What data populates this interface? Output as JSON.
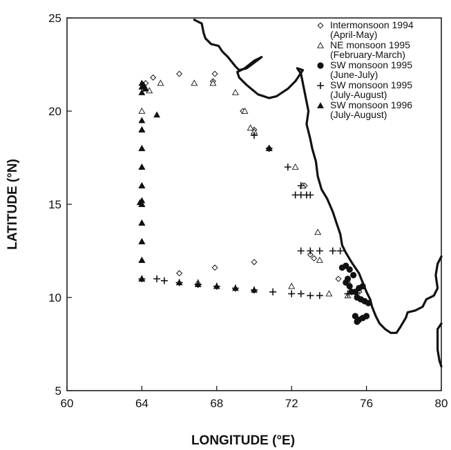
{
  "chart_data": {
    "type": "scatter",
    "title": "",
    "xlabel": "LONGITUDE (°E)",
    "ylabel": "LATITUDE (°N)",
    "xlim": [
      60,
      80
    ],
    "ylim": [
      5,
      25
    ],
    "xticks": [
      60,
      64,
      68,
      72,
      76,
      80
    ],
    "yticks": [
      5,
      10,
      15,
      20,
      25
    ],
    "grid": false,
    "legend_position": "top-right",
    "series": [
      {
        "name": "Intermonsoon 1994",
        "name_line2": "(April-May)",
        "marker": "diamond-open",
        "points": [
          [
            64.2,
            21.5
          ],
          [
            64.6,
            21.8
          ],
          [
            66.0,
            22.0
          ],
          [
            67.9,
            22.0
          ],
          [
            67.8,
            21.6
          ],
          [
            69.4,
            20.0
          ],
          [
            70.0,
            19.0
          ],
          [
            70.8,
            18.0
          ],
          [
            72.7,
            16.0
          ],
          [
            73.0,
            12.3
          ],
          [
            73.2,
            12.1
          ],
          [
            74.5,
            11.0
          ],
          [
            75.0,
            10.8
          ],
          [
            70.0,
            11.9
          ],
          [
            67.9,
            11.6
          ],
          [
            66.0,
            11.3
          ]
        ]
      },
      {
        "name": "NE monsoon 1995",
        "name_line2": "(February-March)",
        "marker": "triangle-open",
        "points": [
          [
            64.2,
            21.2
          ],
          [
            64.4,
            21.1
          ],
          [
            65.0,
            21.5
          ],
          [
            66.8,
            21.5
          ],
          [
            67.8,
            21.5
          ],
          [
            69.0,
            21.0
          ],
          [
            69.5,
            20.0
          ],
          [
            69.8,
            19.1
          ],
          [
            70.0,
            18.9
          ],
          [
            70.8,
            18.0
          ],
          [
            72.2,
            17.0
          ],
          [
            72.6,
            16.0
          ],
          [
            64.0,
            20.0
          ],
          [
            64.0,
            19.0
          ],
          [
            64.0,
            18.0
          ],
          [
            64.0,
            17.0
          ],
          [
            64.0,
            16.0
          ],
          [
            64.0,
            15.0
          ],
          [
            64.0,
            14.0
          ],
          [
            64.0,
            13.0
          ],
          [
            64.0,
            12.0
          ],
          [
            64.0,
            11.0
          ],
          [
            67.0,
            10.8
          ],
          [
            72.0,
            10.6
          ],
          [
            73.4,
            13.5
          ],
          [
            73.5,
            12.0
          ],
          [
            74.0,
            10.2
          ],
          [
            75.0,
            10.1
          ],
          [
            75.6,
            10.4
          ]
        ]
      },
      {
        "name": "SW monsoon 1995",
        "name_line2": "(June-July)",
        "marker": "circle-filled",
        "points": [
          [
            74.7,
            11.6
          ],
          [
            74.9,
            11.7
          ],
          [
            75.1,
            11.5
          ],
          [
            75.3,
            11.2
          ],
          [
            75.0,
            11.0
          ],
          [
            74.9,
            10.8
          ],
          [
            75.1,
            10.6
          ],
          [
            75.2,
            10.3
          ],
          [
            75.4,
            10.3
          ],
          [
            75.6,
            10.5
          ],
          [
            75.8,
            10.6
          ],
          [
            75.5,
            10.0
          ],
          [
            75.7,
            9.9
          ],
          [
            75.9,
            9.8
          ],
          [
            76.1,
            9.7
          ],
          [
            75.4,
            9.0
          ],
          [
            75.6,
            8.8
          ],
          [
            75.5,
            8.7
          ],
          [
            75.8,
            8.9
          ],
          [
            76.0,
            9.0
          ]
        ]
      },
      {
        "name": "SW monsoon 1995",
        "name_line2": "(July-August)",
        "marker": "plus",
        "points": [
          [
            64.0,
            11.0
          ],
          [
            64.8,
            11.0
          ],
          [
            65.2,
            10.9
          ],
          [
            66.0,
            10.8
          ],
          [
            67.0,
            10.7
          ],
          [
            68.0,
            10.6
          ],
          [
            69.0,
            10.5
          ],
          [
            70.0,
            10.4
          ],
          [
            71.0,
            10.3
          ],
          [
            72.0,
            10.2
          ],
          [
            72.5,
            10.2
          ],
          [
            73.0,
            10.1
          ],
          [
            73.5,
            10.1
          ],
          [
            75.0,
            10.2
          ],
          [
            75.5,
            10.2
          ],
          [
            70.0,
            18.7
          ],
          [
            70.8,
            18.0
          ],
          [
            71.8,
            17.0
          ],
          [
            72.5,
            16.0
          ],
          [
            72.2,
            15.5
          ],
          [
            72.5,
            15.5
          ],
          [
            72.8,
            15.5
          ],
          [
            73.0,
            15.5
          ],
          [
            72.5,
            12.5
          ],
          [
            73.0,
            12.5
          ],
          [
            73.5,
            12.5
          ],
          [
            74.2,
            12.5
          ],
          [
            74.6,
            12.5
          ]
        ]
      },
      {
        "name": "SW monsoon 1996",
        "name_line2": "(July-August)",
        "marker": "triangle-filled",
        "points": [
          [
            64.0,
            21.5
          ],
          [
            64.1,
            21.4
          ],
          [
            64.0,
            21.3
          ],
          [
            64.2,
            21.2
          ],
          [
            64.0,
            21.0
          ],
          [
            64.0,
            19.5
          ],
          [
            64.0,
            19.0
          ],
          [
            64.0,
            18.0
          ],
          [
            64.0,
            17.0
          ],
          [
            64.0,
            16.0
          ],
          [
            64.0,
            15.2
          ],
          [
            63.9,
            15.1
          ],
          [
            64.0,
            15.0
          ],
          [
            64.0,
            14.0
          ],
          [
            64.0,
            13.0
          ],
          [
            64.0,
            12.0
          ],
          [
            64.0,
            11.0
          ],
          [
            66.0,
            10.8
          ],
          [
            67.0,
            10.7
          ],
          [
            68.0,
            10.6
          ],
          [
            69.0,
            10.5
          ],
          [
            70.0,
            10.4
          ],
          [
            70.8,
            18.0
          ],
          [
            64.8,
            19.8
          ]
        ]
      }
    ],
    "coastline": [
      [
        [
          66.8,
          24.9
        ],
        [
          67.2,
          24.7
        ],
        [
          67.3,
          24.2
        ],
        [
          67.4,
          23.9
        ],
        [
          67.7,
          23.6
        ],
        [
          68.1,
          23.5
        ],
        [
          68.3,
          23.2
        ],
        [
          68.6,
          22.9
        ],
        [
          69.0,
          22.4
        ],
        [
          69.2,
          22.2
        ],
        [
          69.6,
          22.3
        ],
        [
          70.0,
          22.6
        ],
        [
          70.4,
          22.9
        ],
        [
          70.0,
          22.7
        ],
        [
          69.5,
          22.3
        ],
        [
          69.1,
          22.1
        ],
        [
          69.2,
          21.8
        ],
        [
          69.6,
          21.4
        ],
        [
          70.2,
          20.9
        ],
        [
          70.8,
          20.7
        ],
        [
          71.2,
          20.8
        ],
        [
          71.8,
          21.2
        ],
        [
          72.2,
          21.6
        ],
        [
          72.6,
          22.2
        ],
        [
          72.3,
          22.3
        ],
        [
          72.5,
          22.0
        ],
        [
          72.6,
          21.5
        ],
        [
          72.7,
          21.0
        ],
        [
          72.8,
          20.5
        ],
        [
          72.9,
          20.0
        ],
        [
          72.8,
          19.3
        ],
        [
          73.0,
          18.5
        ],
        [
          73.1,
          18.0
        ],
        [
          73.3,
          17.3
        ],
        [
          73.4,
          16.5
        ],
        [
          73.6,
          15.8
        ],
        [
          73.9,
          15.3
        ],
        [
          74.2,
          14.6
        ],
        [
          74.4,
          14.0
        ],
        [
          74.6,
          13.4
        ],
        [
          74.7,
          12.8
        ],
        [
          74.9,
          12.4
        ],
        [
          75.2,
          11.9
        ],
        [
          75.6,
          11.3
        ],
        [
          75.8,
          10.8
        ],
        [
          76.0,
          10.3
        ],
        [
          76.2,
          9.9
        ],
        [
          76.3,
          9.5
        ],
        [
          76.5,
          9.0
        ],
        [
          76.7,
          8.6
        ],
        [
          77.0,
          8.3
        ],
        [
          77.3,
          8.1
        ],
        [
          77.6,
          8.1
        ],
        [
          77.8,
          8.4
        ],
        [
          78.1,
          8.9
        ],
        [
          78.2,
          9.2
        ],
        [
          78.6,
          9.3
        ],
        [
          79.0,
          9.5
        ],
        [
          79.2,
          9.9
        ],
        [
          79.6,
          10.1
        ],
        [
          79.8,
          10.5
        ],
        [
          79.7,
          11.2
        ],
        [
          79.8,
          11.8
        ],
        [
          80.0,
          12.2
        ]
      ],
      [
        [
          80.0,
          8.6
        ],
        [
          79.8,
          8.3
        ],
        [
          79.8,
          7.8
        ],
        [
          79.8,
          7.2
        ],
        [
          79.9,
          6.6
        ],
        [
          80.0,
          6.3
        ]
      ]
    ]
  }
}
